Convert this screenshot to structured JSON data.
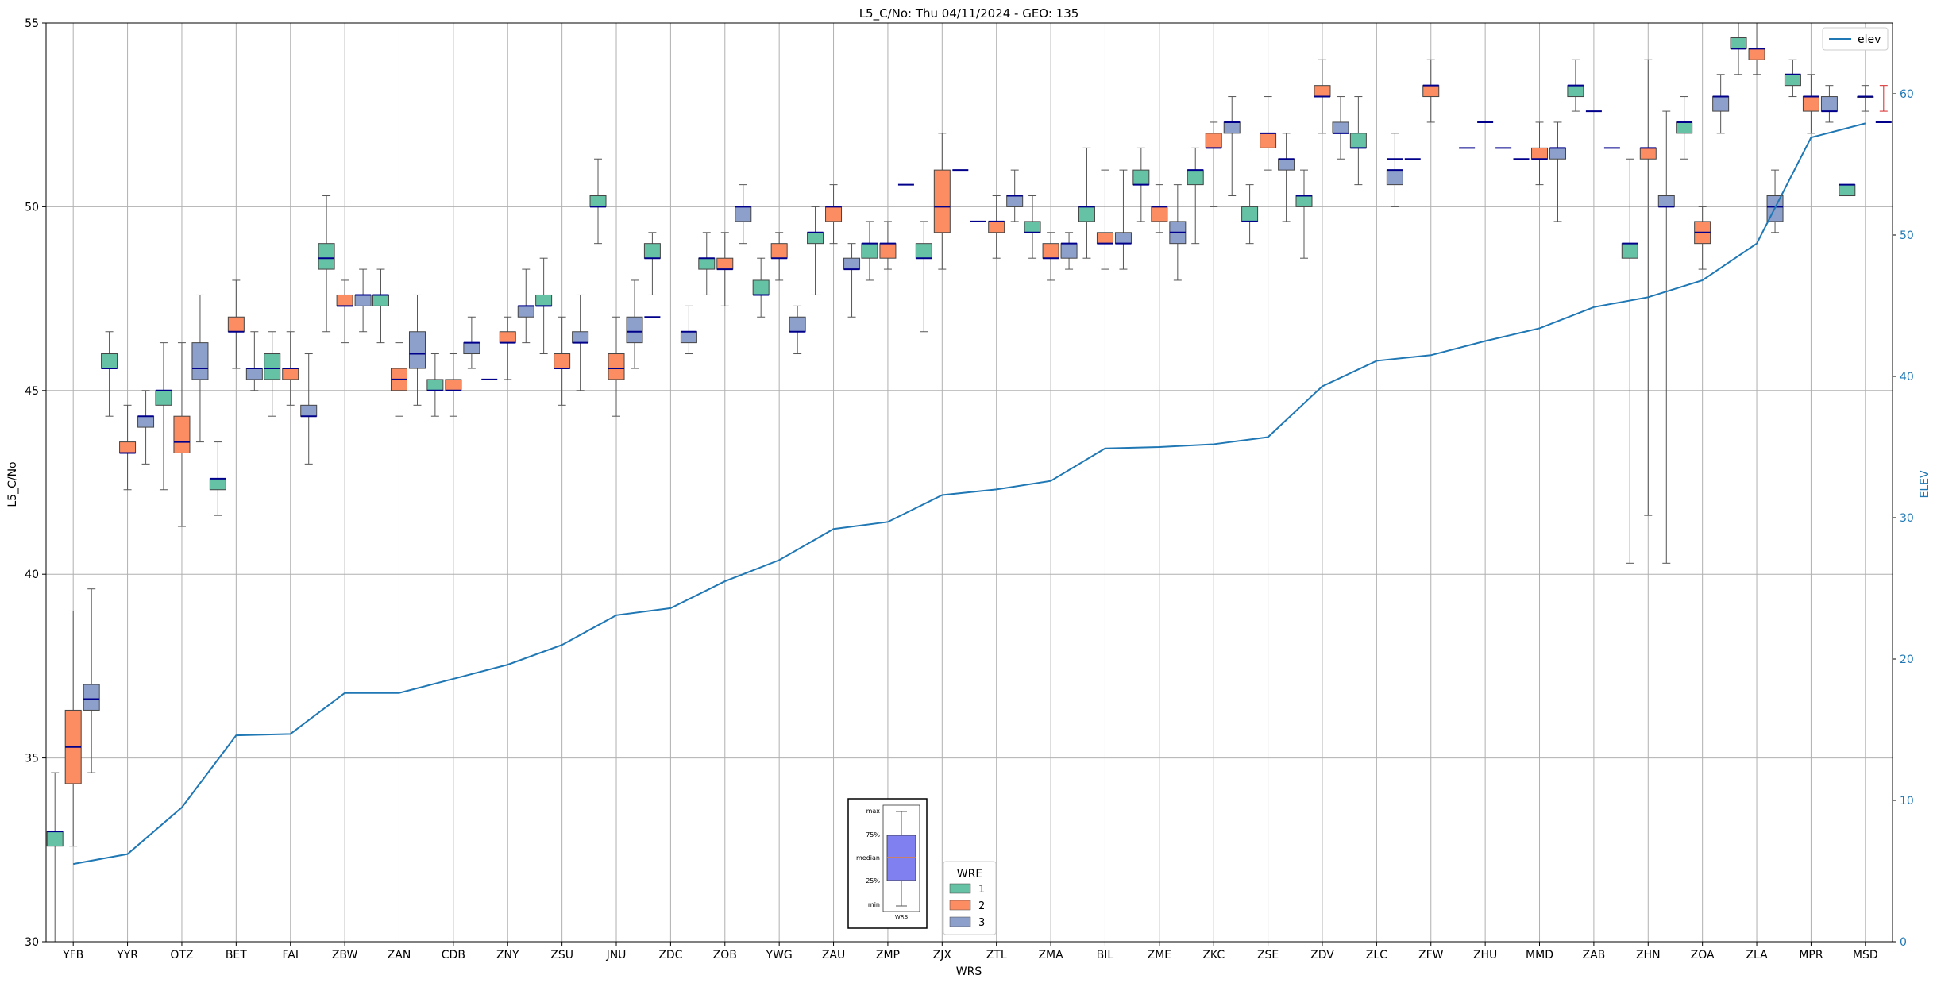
{
  "chart_data": {
    "type": "box",
    "title": "L5_C/No: Thu 04/11/2024 - GEO: 135",
    "xlabel": "WRS",
    "ylabel": "L5_C/No",
    "y2label": "ELEV",
    "ylim": [
      30,
      55
    ],
    "y2lim": [
      0,
      65
    ],
    "yticks": [
      30,
      35,
      40,
      45,
      50,
      55
    ],
    "y2ticks": [
      0,
      10,
      20,
      30,
      40,
      50,
      60
    ],
    "grid": true,
    "categories": [
      "YFB",
      "YYR",
      "OTZ",
      "BET",
      "FAI",
      "ZBW",
      "ZAN",
      "CDB",
      "ZNY",
      "ZSU",
      "JNU",
      "ZDC",
      "ZOB",
      "YWG",
      "ZAU",
      "ZMP",
      "ZJX",
      "ZTL",
      "ZMA",
      "BIL",
      "ZME",
      "ZKC",
      "ZSE",
      "ZDV",
      "ZLC",
      "ZFW",
      "ZHU",
      "MMD",
      "ZAB",
      "ZHN",
      "ZOA",
      "ZLA",
      "MPR",
      "MSD"
    ],
    "hue_legend": {
      "title": "WRE",
      "entries": [
        "1",
        "2",
        "3"
      ]
    },
    "colors": {
      "1": "#66c2a5",
      "2": "#fc8d62",
      "3": "#8da0cb",
      "elev": "#1f77b4",
      "median": "#00008b"
    },
    "series": [
      {
        "name": "1",
        "boxes": [
          {
            "cat": "YFB",
            "min": 30,
            "q1": 32.6,
            "med": 33.0,
            "q3": 33.0,
            "max": 34.6
          },
          {
            "cat": "YYR",
            "min": 44.3,
            "q1": 45.6,
            "med": 45.6,
            "q3": 46.0,
            "max": 46.6
          },
          {
            "cat": "OTZ",
            "min": 42.3,
            "q1": 44.6,
            "med": 45.0,
            "q3": 45.0,
            "max": 46.3
          },
          {
            "cat": "BET",
            "min": 41.6,
            "q1": 42.3,
            "med": 42.6,
            "q3": 42.6,
            "max": 43.6
          },
          {
            "cat": "FAI",
            "min": 44.3,
            "q1": 45.3,
            "med": 45.6,
            "q3": 46.0,
            "max": 46.6
          },
          {
            "cat": "ZBW",
            "min": 46.6,
            "q1": 48.3,
            "med": 48.6,
            "q3": 49.0,
            "max": 50.3
          },
          {
            "cat": "ZAN",
            "min": 46.3,
            "q1": 47.3,
            "med": 47.6,
            "q3": 47.6,
            "max": 48.3
          },
          {
            "cat": "CDB",
            "min": 44.3,
            "q1": 45.0,
            "med": 45.0,
            "q3": 45.3,
            "max": 46.0
          },
          {
            "cat": "ZSU",
            "min": 46.0,
            "q1": 47.3,
            "med": 47.3,
            "q3": 47.6,
            "max": 48.6
          },
          {
            "cat": "JNU",
            "min": 49.0,
            "q1": 50.0,
            "med": 50.0,
            "q3": 50.3,
            "max": 51.3
          },
          {
            "cat": "ZDC",
            "min": 47.6,
            "q1": 48.6,
            "med": 48.6,
            "q3": 49.0,
            "max": 49.3
          },
          {
            "cat": "ZOB",
            "min": 47.6,
            "q1": 48.3,
            "med": 48.6,
            "q3": 48.6,
            "max": 49.3
          },
          {
            "cat": "YWG",
            "min": 47.0,
            "q1": 47.6,
            "med": 47.6,
            "q3": 48.0,
            "max": 48.6
          },
          {
            "cat": "ZAU",
            "min": 47.6,
            "q1": 49.0,
            "med": 49.3,
            "q3": 49.3,
            "max": 50.0
          },
          {
            "cat": "ZMP",
            "min": 48.0,
            "q1": 48.6,
            "med": 49.0,
            "q3": 49.0,
            "max": 49.6
          },
          {
            "cat": "ZJX",
            "min": 46.6,
            "q1": 48.6,
            "med": 48.6,
            "q3": 49.0,
            "max": 49.6
          },
          {
            "cat": "ZMA",
            "min": 48.6,
            "q1": 49.3,
            "med": 49.3,
            "q3": 49.6,
            "max": 50.3
          },
          {
            "cat": "BIL",
            "min": 48.6,
            "q1": 49.6,
            "med": 50.0,
            "q3": 50.0,
            "max": 51.6
          },
          {
            "cat": "ZME",
            "min": 49.6,
            "q1": 50.6,
            "med": 50.6,
            "q3": 51.0,
            "max": 51.6
          },
          {
            "cat": "ZKC",
            "min": 49.0,
            "q1": 50.6,
            "med": 51.0,
            "q3": 51.0,
            "max": 51.6
          },
          {
            "cat": "ZSE",
            "min": 49.0,
            "q1": 49.6,
            "med": 49.6,
            "q3": 50.0,
            "max": 50.6
          },
          {
            "cat": "ZDV",
            "min": 48.6,
            "q1": 50.0,
            "med": 50.3,
            "q3": 50.3,
            "max": 51.0
          },
          {
            "cat": "ZLC",
            "min": 50.6,
            "q1": 51.6,
            "med": 51.6,
            "q3": 52.0,
            "max": 53.0
          },
          {
            "cat": "ZAB",
            "min": 52.6,
            "q1": 53.0,
            "med": 53.3,
            "q3": 53.3,
            "max": 54.0
          },
          {
            "cat": "ZHN",
            "min": 40.3,
            "q1": 48.6,
            "med": 49.0,
            "q3": 49.0,
            "max": 51.3
          },
          {
            "cat": "ZOA",
            "min": 51.3,
            "q1": 52.0,
            "med": 52.3,
            "q3": 52.3,
            "max": 53.0
          },
          {
            "cat": "ZLA",
            "min": 53.6,
            "q1": 54.3,
            "med": 54.3,
            "q3": 54.6,
            "max": 55.0
          },
          {
            "cat": "MPR",
            "min": 53.0,
            "q1": 53.3,
            "med": 53.6,
            "q3": 53.6,
            "max": 54.0
          },
          {
            "cat": "MSD",
            "min": 50.3,
            "q1": 50.3,
            "med": 50.6,
            "q3": 50.6,
            "max": 50.6
          }
        ]
      },
      {
        "name": "2",
        "boxes": [
          {
            "cat": "YFB",
            "min": 32.6,
            "q1": 34.3,
            "med": 35.3,
            "q3": 36.3,
            "max": 39.0
          },
          {
            "cat": "YYR",
            "min": 42.3,
            "q1": 43.3,
            "med": 43.3,
            "q3": 43.6,
            "max": 44.6
          },
          {
            "cat": "OTZ",
            "min": 41.3,
            "q1": 43.3,
            "med": 43.6,
            "q3": 44.3,
            "max": 46.3
          },
          {
            "cat": "BET",
            "min": 45.6,
            "q1": 46.6,
            "med": 46.6,
            "q3": 47.0,
            "max": 48.0
          },
          {
            "cat": "FAI",
            "min": 44.6,
            "q1": 45.3,
            "med": 45.6,
            "q3": 45.6,
            "max": 46.6
          },
          {
            "cat": "ZBW",
            "min": 46.3,
            "q1": 47.3,
            "med": 47.3,
            "q3": 47.6,
            "max": 48.0
          },
          {
            "cat": "ZAN",
            "min": 44.3,
            "q1": 45.0,
            "med": 45.3,
            "q3": 45.6,
            "max": 46.3
          },
          {
            "cat": "CDB",
            "min": 44.3,
            "q1": 45.0,
            "med": 45.0,
            "q3": 45.3,
            "max": 46.0
          },
          {
            "cat": "ZNY",
            "min": 45.3,
            "q1": 46.3,
            "med": 46.3,
            "q3": 46.6,
            "max": 47.0
          },
          {
            "cat": "ZSU",
            "min": 44.6,
            "q1": 45.6,
            "med": 45.6,
            "q3": 46.0,
            "max": 47.0
          },
          {
            "cat": "JNU",
            "min": 44.3,
            "q1": 45.3,
            "med": 45.6,
            "q3": 46.0,
            "max": 47.0
          },
          {
            "cat": "ZOB",
            "min": 47.3,
            "q1": 48.3,
            "med": 48.3,
            "q3": 48.6,
            "max": 49.3
          },
          {
            "cat": "YWG",
            "min": 48.0,
            "q1": 48.6,
            "med": 48.6,
            "q3": 49.0,
            "max": 49.3
          },
          {
            "cat": "ZAU",
            "min": 49.0,
            "q1": 49.6,
            "med": 50.0,
            "q3": 50.0,
            "max": 50.6
          },
          {
            "cat": "ZMP",
            "min": 48.3,
            "q1": 48.6,
            "med": 49.0,
            "q3": 49.0,
            "max": 49.6
          },
          {
            "cat": "ZJX",
            "min": 48.3,
            "q1": 49.3,
            "med": 50.0,
            "q3": 51.0,
            "max": 52.0
          },
          {
            "cat": "ZTL",
            "min": 48.6,
            "q1": 49.3,
            "med": 49.6,
            "q3": 49.6,
            "max": 50.3
          },
          {
            "cat": "ZMA",
            "min": 48.0,
            "q1": 48.6,
            "med": 48.6,
            "q3": 49.0,
            "max": 49.3
          },
          {
            "cat": "BIL",
            "min": 48.3,
            "q1": 49.0,
            "med": 49.0,
            "q3": 49.3,
            "max": 51.0
          },
          {
            "cat": "ZME",
            "min": 49.3,
            "q1": 49.6,
            "med": 50.0,
            "q3": 50.0,
            "max": 50.6
          },
          {
            "cat": "ZKC",
            "min": 50.0,
            "q1": 51.6,
            "med": 51.6,
            "q3": 52.0,
            "max": 52.3
          },
          {
            "cat": "ZSE",
            "min": 51.0,
            "q1": 51.6,
            "med": 52.0,
            "q3": 52.0,
            "max": 53.0
          },
          {
            "cat": "ZDV",
            "min": 52.0,
            "q1": 53.0,
            "med": 53.0,
            "q3": 53.3,
            "max": 54.0
          },
          {
            "cat": "ZFW",
            "min": 52.3,
            "q1": 53.0,
            "med": 53.3,
            "q3": 53.3,
            "max": 54.0
          },
          {
            "cat": "MMD",
            "min": 50.6,
            "q1": 51.3,
            "med": 51.3,
            "q3": 51.6,
            "max": 52.3
          },
          {
            "cat": "ZHN",
            "min": 41.6,
            "q1": 51.3,
            "med": 51.6,
            "q3": 51.6,
            "max": 54.0
          },
          {
            "cat": "ZOA",
            "min": 48.3,
            "q1": 49.0,
            "med": 49.3,
            "q3": 49.6,
            "max": 50.0
          },
          {
            "cat": "ZLA",
            "min": 53.6,
            "q1": 54.0,
            "med": 54.3,
            "q3": 54.3,
            "max": 55.0
          },
          {
            "cat": "MPR",
            "min": 52.0,
            "q1": 52.6,
            "med": 53.0,
            "q3": 53.0,
            "max": 53.6
          },
          {
            "cat": "MSD",
            "min": 52.6,
            "q1": 53.0,
            "med": 53.0,
            "q3": 53.0,
            "max": 53.3
          }
        ]
      },
      {
        "name": "3",
        "boxes": [
          {
            "cat": "YFB",
            "min": 34.6,
            "q1": 36.3,
            "med": 36.6,
            "q3": 37.0,
            "max": 39.6
          },
          {
            "cat": "YYR",
            "min": 43.0,
            "q1": 44.0,
            "med": 44.3,
            "q3": 44.3,
            "max": 45.0
          },
          {
            "cat": "OTZ",
            "min": 43.6,
            "q1": 45.3,
            "med": 45.6,
            "q3": 46.3,
            "max": 47.6
          },
          {
            "cat": "BET",
            "min": 45.0,
            "q1": 45.3,
            "med": 45.6,
            "q3": 45.6,
            "max": 46.6
          },
          {
            "cat": "FAI",
            "min": 43.0,
            "q1": 44.3,
            "med": 44.3,
            "q3": 44.6,
            "max": 46.0
          },
          {
            "cat": "ZBW",
            "min": 46.6,
            "q1": 47.3,
            "med": 47.6,
            "q3": 47.6,
            "max": 48.3
          },
          {
            "cat": "ZAN",
            "min": 44.6,
            "q1": 45.6,
            "med": 46.0,
            "q3": 46.6,
            "max": 47.6
          },
          {
            "cat": "CDB",
            "min": 45.6,
            "q1": 46.0,
            "med": 46.3,
            "q3": 46.3,
            "max": 47.0
          },
          {
            "cat": "ZNY",
            "min": 46.3,
            "q1": 47.0,
            "med": 47.3,
            "q3": 47.3,
            "max": 48.3
          },
          {
            "cat": "ZSU",
            "min": 45.0,
            "q1": 46.3,
            "med": 46.3,
            "q3": 46.6,
            "max": 47.6
          },
          {
            "cat": "JNU",
            "min": 45.6,
            "q1": 46.3,
            "med": 46.6,
            "q3": 47.0,
            "max": 48.0
          },
          {
            "cat": "ZDC",
            "min": 46.0,
            "q1": 46.3,
            "med": 46.6,
            "q3": 46.6,
            "max": 47.3
          },
          {
            "cat": "ZOB",
            "min": 49.0,
            "q1": 49.6,
            "med": 50.0,
            "q3": 50.0,
            "max": 50.6
          },
          {
            "cat": "YWG",
            "min": 46.0,
            "q1": 46.6,
            "med": 46.6,
            "q3": 47.0,
            "max": 47.3
          },
          {
            "cat": "ZAU",
            "min": 47.0,
            "q1": 48.3,
            "med": 48.3,
            "q3": 48.6,
            "max": 49.0
          },
          {
            "cat": "ZTL",
            "min": 49.6,
            "q1": 50.0,
            "med": 50.3,
            "q3": 50.3,
            "max": 51.0
          },
          {
            "cat": "ZMA",
            "min": 48.3,
            "q1": 48.6,
            "med": 49.0,
            "q3": 49.0,
            "max": 49.3
          },
          {
            "cat": "BIL",
            "min": 48.3,
            "q1": 49.0,
            "med": 49.0,
            "q3": 49.3,
            "max": 51.0
          },
          {
            "cat": "ZME",
            "min": 48.0,
            "q1": 49.0,
            "med": 49.3,
            "q3": 49.6,
            "max": 50.6
          },
          {
            "cat": "ZKC",
            "min": 50.3,
            "q1": 52.0,
            "med": 52.3,
            "q3": 52.3,
            "max": 53.0
          },
          {
            "cat": "ZSE",
            "min": 49.6,
            "q1": 51.0,
            "med": 51.3,
            "q3": 51.3,
            "max": 52.0
          },
          {
            "cat": "ZDV",
            "min": 51.3,
            "q1": 52.0,
            "med": 52.0,
            "q3": 52.3,
            "max": 53.0
          },
          {
            "cat": "ZLC",
            "min": 50.0,
            "q1": 50.6,
            "med": 51.0,
            "q3": 51.0,
            "max": 52.0
          },
          {
            "cat": "MMD",
            "min": 49.6,
            "q1": 51.3,
            "med": 51.6,
            "q3": 51.6,
            "max": 52.3
          },
          {
            "cat": "ZHN",
            "min": 40.3,
            "q1": 50.0,
            "med": 50.0,
            "q3": 50.3,
            "max": 52.6
          },
          {
            "cat": "ZOA",
            "min": 52.0,
            "q1": 52.6,
            "med": 53.0,
            "q3": 53.0,
            "max": 53.6
          },
          {
            "cat": "ZLA",
            "min": 49.3,
            "q1": 49.6,
            "med": 50.0,
            "q3": 50.3,
            "max": 51.0
          },
          {
            "cat": "MPR",
            "min": 52.3,
            "q1": 52.6,
            "med": 52.6,
            "q3": 53.0,
            "max": 53.3
          }
        ]
      },
      {
        "name": "median-only",
        "lines": [
          {
            "cat": "ZDC",
            "slot": 0,
            "value": 47.0
          },
          {
            "cat": "ZNY",
            "slot": 0,
            "value": 45.3
          },
          {
            "cat": "ZMP",
            "slot": 2,
            "value": 50.6
          },
          {
            "cat": "ZJX",
            "slot": 2,
            "value": 51.0
          },
          {
            "cat": "ZTL",
            "slot": 0,
            "value": 49.6
          },
          {
            "cat": "ZLC",
            "slot": 2,
            "value": 51.3
          },
          {
            "cat": "ZFW",
            "slot": 0,
            "value": 51.3
          },
          {
            "cat": "ZHU",
            "slot": 0,
            "value": 51.6
          },
          {
            "cat": "ZHU",
            "slot": 1,
            "value": 52.3
          },
          {
            "cat": "ZHU",
            "slot": 2,
            "value": 51.6
          },
          {
            "cat": "MMD",
            "slot": 0,
            "value": 51.3
          },
          {
            "cat": "ZAB",
            "slot": 1,
            "value": 52.6
          },
          {
            "cat": "ZAB",
            "slot": 2,
            "value": 51.6
          },
          {
            "cat": "MSD",
            "slot": 2,
            "value": 52.3
          }
        ]
      }
    ],
    "elev_line": {
      "name": "elev",
      "values": [
        5.5,
        6.2,
        9.5,
        14.6,
        14.7,
        17.6,
        17.6,
        18.6,
        19.6,
        21.0,
        23.1,
        23.6,
        25.5,
        27.0,
        29.2,
        29.7,
        31.6,
        32.0,
        32.6,
        34.9,
        35.0,
        35.2,
        35.7,
        39.3,
        41.1,
        41.5,
        42.5,
        43.4,
        44.9,
        45.6,
        46.8,
        49.4,
        56.9,
        57.9
      ]
    },
    "legend": {
      "position": "top-right",
      "entries": [
        "elev"
      ]
    },
    "inset_key": {
      "labels": [
        "max",
        "75%",
        "median",
        "25%",
        "min"
      ],
      "caption": "WRS"
    }
  }
}
